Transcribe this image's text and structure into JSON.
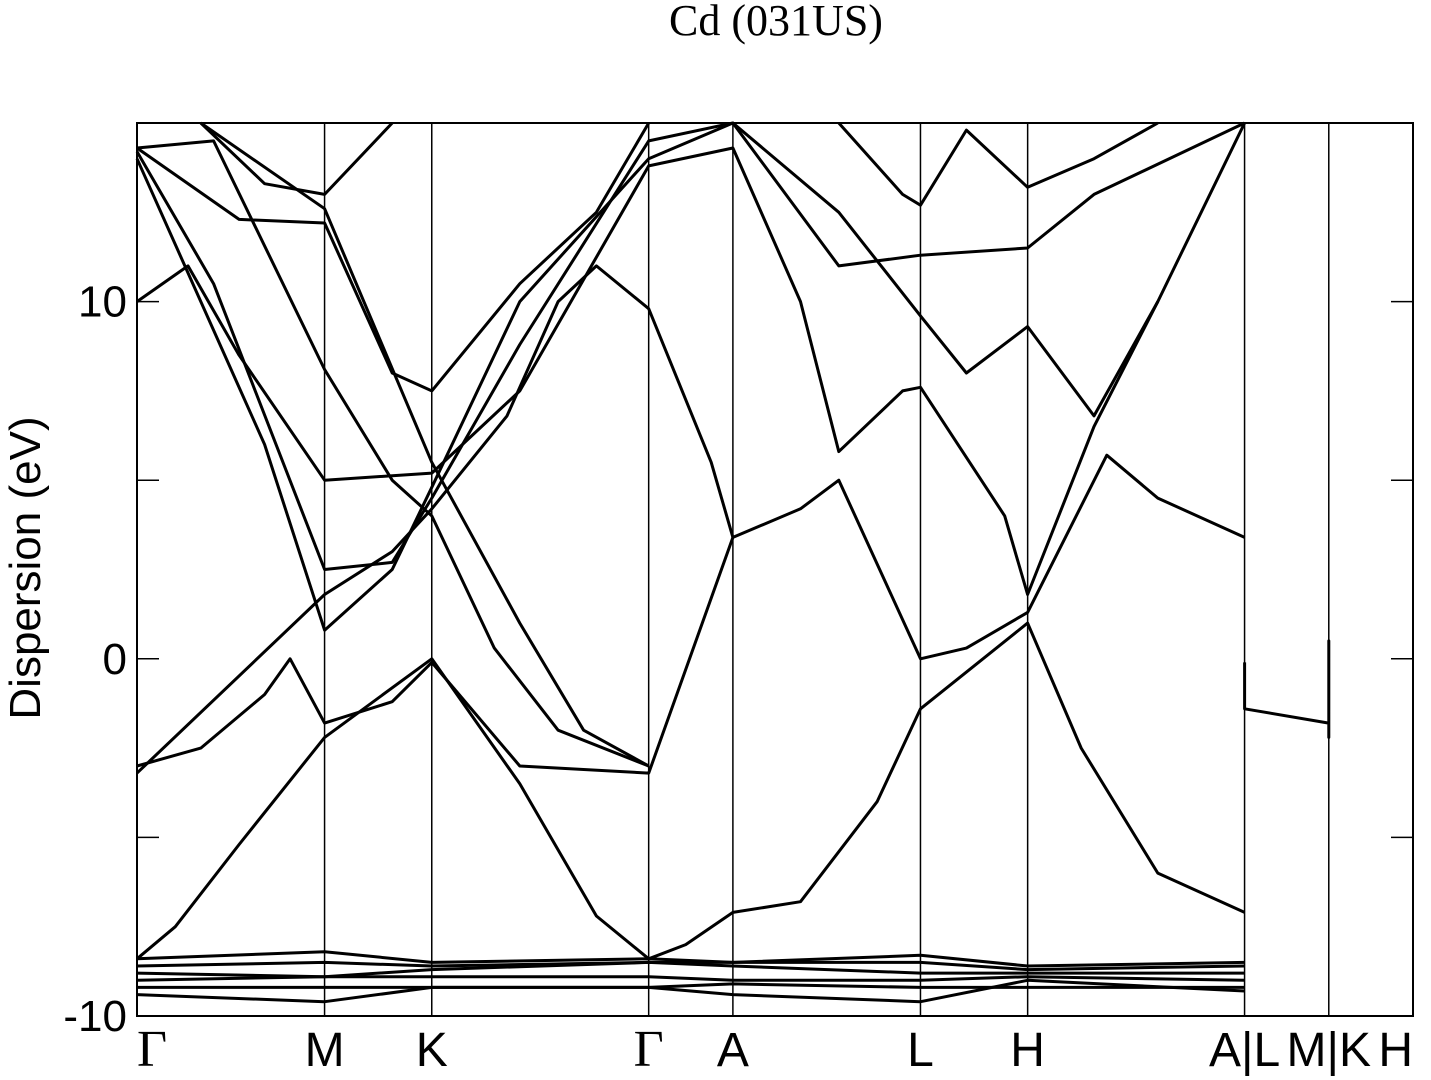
{
  "chart_data": {
    "type": "line",
    "title": "Cd (031US)",
    "xlabel": "",
    "ylabel": "Dispersion (eV)",
    "ylim": [
      -10,
      15
    ],
    "yticks": [
      {
        "value": -10,
        "label": "-10"
      },
      {
        "value": -5,
        "label": ""
      },
      {
        "value": 0,
        "label": "0"
      },
      {
        "value": 5,
        "label": ""
      },
      {
        "value": 10,
        "label": "10"
      },
      {
        "value": 15,
        "label": ""
      }
    ],
    "kpath": [
      {
        "label": "Γ",
        "pos": 0.0
      },
      {
        "label": "M",
        "pos": 0.147
      },
      {
        "label": "K",
        "pos": 0.231
      },
      {
        "label": "Γ",
        "pos": 0.401
      },
      {
        "label": "A",
        "pos": 0.467
      },
      {
        "label": "L",
        "pos": 0.614
      },
      {
        "label": "H",
        "pos": 0.698
      },
      {
        "label": "A|L",
        "pos": 0.868
      },
      {
        "label": "M|K",
        "pos": 0.934
      },
      {
        "label": "H",
        "pos": 1.0
      }
    ],
    "grid": false,
    "bands": [
      {
        "name": "",
        "points": [
          [
            0,
            -8.4
          ],
          [
            0.147,
            -8.2
          ],
          [
            0.231,
            -8.5
          ],
          [
            0.401,
            -8.4
          ],
          [
            0.467,
            -8.5
          ],
          [
            0.614,
            -8.3
          ],
          [
            0.698,
            -8.6
          ],
          [
            0.868,
            -8.5
          ]
        ]
      },
      {
        "name": "",
        "points": [
          [
            0,
            -8.6
          ],
          [
            0.147,
            -8.5
          ],
          [
            0.231,
            -8.6
          ],
          [
            0.401,
            -8.5
          ],
          [
            0.467,
            -8.5
          ],
          [
            0.614,
            -8.5
          ],
          [
            0.698,
            -8.7
          ],
          [
            0.868,
            -8.6
          ]
        ]
      },
      {
        "name": "",
        "points": [
          [
            0,
            -8.8
          ],
          [
            0.147,
            -8.9
          ],
          [
            0.231,
            -8.7
          ],
          [
            0.401,
            -8.5
          ],
          [
            0.467,
            -8.6
          ],
          [
            0.614,
            -8.8
          ],
          [
            0.698,
            -8.8
          ],
          [
            0.868,
            -8.8
          ]
        ]
      },
      {
        "name": "",
        "points": [
          [
            0,
            -9.0
          ],
          [
            0.147,
            -8.9
          ],
          [
            0.231,
            -8.9
          ],
          [
            0.401,
            -8.9
          ],
          [
            0.467,
            -9.0
          ],
          [
            0.614,
            -9.0
          ],
          [
            0.698,
            -8.9
          ],
          [
            0.868,
            -9.0
          ]
        ]
      },
      {
        "name": "",
        "points": [
          [
            0,
            -9.2
          ],
          [
            0.147,
            -9.2
          ],
          [
            0.231,
            -9.2
          ],
          [
            0.401,
            -9.2
          ],
          [
            0.467,
            -9.1
          ],
          [
            0.614,
            -9.2
          ],
          [
            0.698,
            -9.2
          ],
          [
            0.868,
            -9.2
          ]
        ]
      },
      {
        "name": "",
        "points": [
          [
            0,
            -9.4
          ],
          [
            0.147,
            -9.6
          ],
          [
            0.231,
            -9.2
          ],
          [
            0.401,
            -9.2
          ],
          [
            0.467,
            -9.4
          ],
          [
            0.614,
            -9.6
          ],
          [
            0.698,
            -9.0
          ],
          [
            0.868,
            -9.3
          ]
        ]
      },
      {
        "name": "",
        "points": [
          [
            0,
            -8.4
          ],
          [
            0.03,
            -7.5
          ],
          [
            0.08,
            -5.2
          ],
          [
            0.147,
            -2.2
          ],
          [
            0.231,
            0
          ],
          [
            0.3,
            -3.5
          ],
          [
            0.36,
            -7.2
          ],
          [
            0.401,
            -8.4
          ],
          [
            0.43,
            -8.0
          ],
          [
            0.467,
            -7.1
          ],
          [
            0.52,
            -6.8
          ],
          [
            0.58,
            -4.0
          ],
          [
            0.614,
            -1.4
          ],
          [
            0.698,
            1.0
          ],
          [
            0.74,
            -2.5
          ],
          [
            0.8,
            -6.0
          ],
          [
            0.868,
            -7.1
          ]
        ]
      },
      {
        "name": "",
        "points": [
          [
            0,
            -3.0
          ],
          [
            0.05,
            -2.5
          ],
          [
            0.1,
            -1.0
          ],
          [
            0.12,
            0
          ],
          [
            0.147,
            -1.8
          ],
          [
            0.2,
            -1.2
          ],
          [
            0.231,
            -0.1
          ],
          [
            0.3,
            -3.0
          ],
          [
            0.401,
            -3.2
          ],
          [
            0.467,
            3.4
          ],
          [
            0.52,
            4.2
          ],
          [
            0.55,
            5.0
          ],
          [
            0.614,
            0
          ],
          [
            0.65,
            0.3
          ],
          [
            0.698,
            1.3
          ],
          [
            0.76,
            5.7
          ],
          [
            0.8,
            4.5
          ],
          [
            0.868,
            3.4
          ]
        ]
      },
      {
        "name": "",
        "points": [
          [
            0,
            -3.2
          ],
          [
            0.147,
            1.8
          ],
          [
            0.2,
            3.0
          ],
          [
            0.231,
            4.2
          ],
          [
            0.29,
            6.8
          ],
          [
            0.33,
            10.0
          ],
          [
            0.36,
            11.0
          ],
          [
            0.401,
            9.8
          ],
          [
            0.45,
            5.5
          ],
          [
            0.467,
            3.4
          ]
        ]
      },
      {
        "name": "",
        "points": [
          [
            0,
            10.0
          ],
          [
            0.04,
            11.0
          ],
          [
            0.08,
            8.5
          ],
          [
            0.147,
            5.0
          ],
          [
            0.231,
            5.2
          ],
          [
            0.3,
            7.5
          ],
          [
            0.401,
            13.8
          ],
          [
            0.467,
            14.3
          ],
          [
            0.52,
            10.0
          ],
          [
            0.55,
            5.8
          ],
          [
            0.6,
            7.5
          ],
          [
            0.614,
            7.6
          ],
          [
            0.68,
            4.0
          ],
          [
            0.698,
            1.8
          ],
          [
            0.75,
            6.5
          ],
          [
            0.8,
            10.0
          ]
        ]
      },
      {
        "name": "",
        "points": [
          [
            0,
            14.2
          ],
          [
            0.06,
            10.5
          ],
          [
            0.147,
            2.5
          ],
          [
            0.2,
            2.7
          ],
          [
            0.231,
            4.5
          ],
          [
            0.3,
            8.8
          ],
          [
            0.401,
            14.5
          ],
          [
            0.467,
            15.0
          ],
          [
            0.55,
            12.5
          ],
          [
            0.614,
            9.6
          ],
          [
            0.65,
            8.0
          ],
          [
            0.698,
            9.3
          ],
          [
            0.75,
            6.8
          ],
          [
            0.8,
            10.0
          ],
          [
            0.868,
            15.0
          ]
        ]
      },
      {
        "name": "",
        "points": [
          [
            0,
            14.0
          ],
          [
            0.1,
            6.0
          ],
          [
            0.147,
            0.8
          ],
          [
            0.2,
            2.5
          ],
          [
            0.231,
            4.8
          ],
          [
            0.3,
            10.0
          ],
          [
            0.401,
            14.0
          ],
          [
            0.467,
            15.0
          ],
          [
            0.55,
            11.0
          ],
          [
            0.614,
            11.3
          ],
          [
            0.698,
            11.5
          ],
          [
            0.75,
            13.0
          ],
          [
            0.868,
            15.0
          ]
        ]
      },
      {
        "name": "",
        "points": [
          [
            0,
            14.3
          ],
          [
            0.08,
            12.3
          ],
          [
            0.147,
            12.2
          ],
          [
            0.2,
            8.0
          ],
          [
            0.231,
            7.5
          ],
          [
            0.3,
            10.5
          ],
          [
            0.36,
            12.5
          ],
          [
            0.401,
            15.0
          ]
        ]
      },
      {
        "name": "",
        "points": [
          [
            0,
            14.3
          ],
          [
            0.06,
            14.5
          ],
          [
            0.147,
            8.1
          ],
          [
            0.2,
            5.0
          ],
          [
            0.231,
            4.0
          ],
          [
            0.28,
            0.3
          ],
          [
            0.33,
            -2.0
          ],
          [
            0.401,
            -3.0
          ]
        ]
      },
      {
        "name": "",
        "points": [
          [
            0.05,
            15.0
          ],
          [
            0.147,
            12.6
          ],
          [
            0.231,
            5.5
          ],
          [
            0.3,
            1.0
          ],
          [
            0.35,
            -2.0
          ],
          [
            0.401,
            -3.0
          ]
        ]
      },
      {
        "name": "",
        "points": [
          [
            0.05,
            15.0
          ],
          [
            0.1,
            13.3
          ],
          [
            0.147,
            13.0
          ],
          [
            0.2,
            15.0
          ]
        ]
      },
      {
        "name": "",
        "points": [
          [
            0.55,
            15.0
          ],
          [
            0.6,
            13.0
          ],
          [
            0.614,
            12.7
          ],
          [
            0.65,
            14.8
          ],
          [
            0.698,
            13.2
          ],
          [
            0.75,
            14.0
          ],
          [
            0.8,
            15.0
          ]
        ]
      },
      {
        "name": "",
        "points": [
          [
            0.868,
            -0.1
          ],
          [
            0.868,
            -1.4
          ],
          [
            0.934,
            -1.8
          ],
          [
            0.934,
            -2.2
          ],
          [
            0.934,
            0.5
          ],
          [
            0.934,
            0
          ]
        ]
      }
    ]
  }
}
